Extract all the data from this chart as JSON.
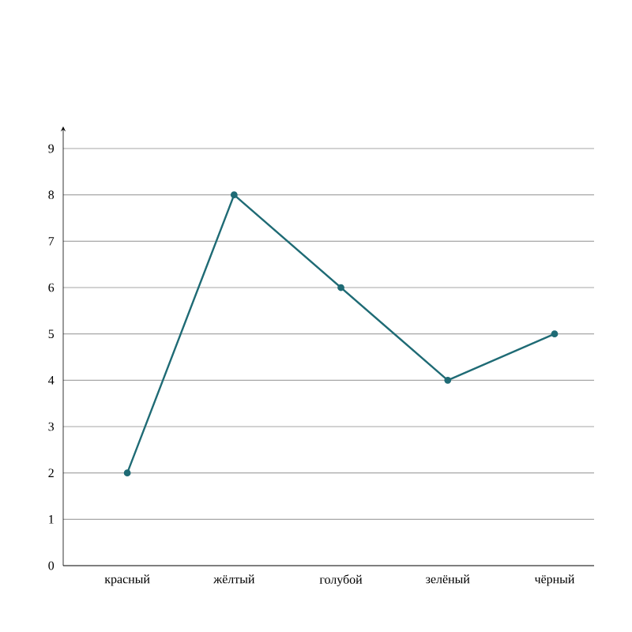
{
  "chart_data": {
    "type": "line",
    "categories": [
      "красный",
      "жёлтый",
      "голубой",
      "зелёный",
      "чёрный"
    ],
    "series": [
      {
        "color": "#1f6b75",
        "values": [
          2,
          8,
          6,
          4,
          5
        ]
      }
    ],
    "ylim": [
      0,
      9
    ],
    "yticks": [
      0,
      1,
      2,
      3,
      4,
      5,
      6,
      7,
      8,
      9
    ],
    "grid": "y",
    "marker": "circle",
    "line_style": "solid"
  }
}
